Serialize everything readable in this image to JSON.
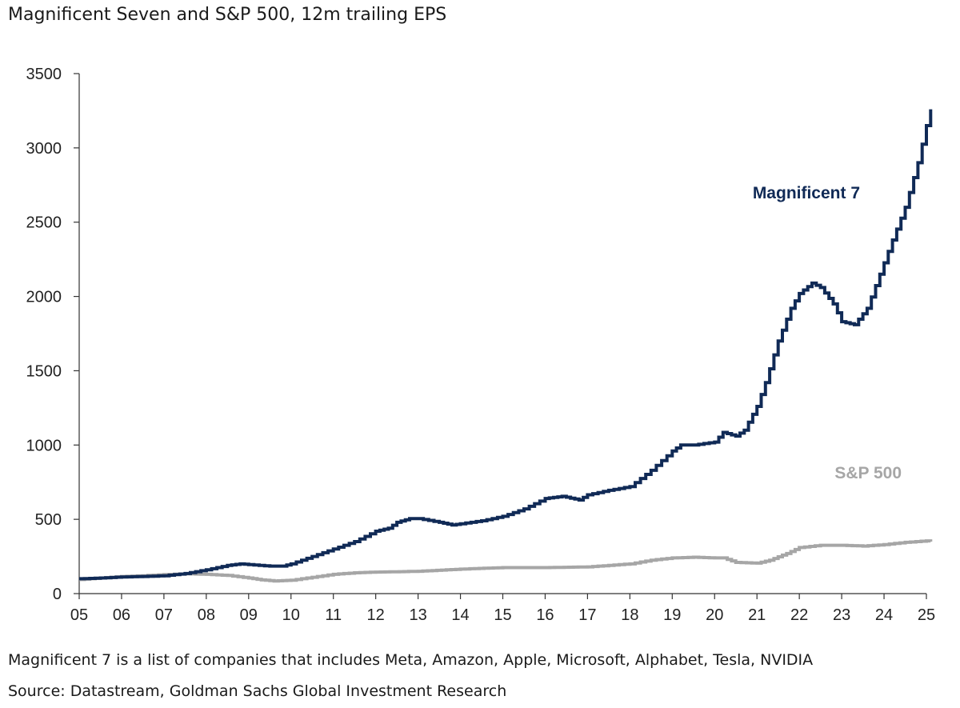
{
  "title": "Magnificent Seven and S&P 500, 12m trailing EPS",
  "footnote": "Magnificent 7 is a list of companies that includes Meta, Amazon, Apple, Microsoft, Alphabet, Tesla, NVIDIA",
  "source": "Source: Datastream, Goldman Sachs Global Investment Research",
  "chart_data": {
    "type": "line",
    "title": "Magnificent Seven and S&P 500, 12m trailing EPS",
    "xlabel": "",
    "ylabel": "",
    "xlim": [
      2005,
      2025
    ],
    "ylim": [
      0,
      3500
    ],
    "x_ticks": [
      "05",
      "06",
      "07",
      "08",
      "09",
      "10",
      "11",
      "12",
      "13",
      "14",
      "15",
      "16",
      "17",
      "18",
      "19",
      "20",
      "21",
      "22",
      "23",
      "24",
      "25"
    ],
    "y_ticks": [
      0,
      500,
      1000,
      1500,
      2000,
      2500,
      3000,
      3500
    ],
    "grid": false,
    "legend": "inline labels",
    "series": [
      {
        "name": "Magnificent 7",
        "color": "#102a56",
        "points": [
          [
            2005.0,
            100
          ],
          [
            2005.5,
            105
          ],
          [
            2006.0,
            112
          ],
          [
            2006.5,
            115
          ],
          [
            2007.0,
            120
          ],
          [
            2007.5,
            135
          ],
          [
            2008.0,
            160
          ],
          [
            2008.5,
            190
          ],
          [
            2008.8,
            200
          ],
          [
            2009.0,
            195
          ],
          [
            2009.5,
            185
          ],
          [
            2009.8,
            185
          ],
          [
            2010.0,
            200
          ],
          [
            2010.5,
            250
          ],
          [
            2011.0,
            300
          ],
          [
            2011.5,
            350
          ],
          [
            2012.0,
            420
          ],
          [
            2012.3,
            440
          ],
          [
            2012.5,
            480
          ],
          [
            2012.8,
            505
          ],
          [
            2013.0,
            505
          ],
          [
            2013.5,
            480
          ],
          [
            2013.8,
            462
          ],
          [
            2014.0,
            470
          ],
          [
            2014.5,
            490
          ],
          [
            2015.0,
            520
          ],
          [
            2015.5,
            570
          ],
          [
            2016.0,
            640
          ],
          [
            2016.4,
            655
          ],
          [
            2016.8,
            630
          ],
          [
            2017.0,
            665
          ],
          [
            2017.5,
            695
          ],
          [
            2018.0,
            720
          ],
          [
            2018.5,
            830
          ],
          [
            2019.0,
            960
          ],
          [
            2019.2,
            1000
          ],
          [
            2019.5,
            1000
          ],
          [
            2020.0,
            1020
          ],
          [
            2020.2,
            1085
          ],
          [
            2020.5,
            1060
          ],
          [
            2020.7,
            1100
          ],
          [
            2021.0,
            1260
          ],
          [
            2021.2,
            1420
          ],
          [
            2021.5,
            1700
          ],
          [
            2021.8,
            1920
          ],
          [
            2022.0,
            2020
          ],
          [
            2022.3,
            2090
          ],
          [
            2022.5,
            2060
          ],
          [
            2022.8,
            1950
          ],
          [
            2023.0,
            1830
          ],
          [
            2023.3,
            1810
          ],
          [
            2023.6,
            1920
          ],
          [
            2023.9,
            2150
          ],
          [
            2024.2,
            2380
          ],
          [
            2024.5,
            2600
          ],
          [
            2024.8,
            2900
          ],
          [
            2025.0,
            3150
          ],
          [
            2025.1,
            3260
          ]
        ]
      },
      {
        "name": "S&P 500",
        "color": "#a6a6a6",
        "points": [
          [
            2005.0,
            95
          ],
          [
            2005.5,
            105
          ],
          [
            2006.0,
            115
          ],
          [
            2006.5,
            120
          ],
          [
            2007.0,
            128
          ],
          [
            2007.5,
            133
          ],
          [
            2008.0,
            130
          ],
          [
            2008.5,
            122
          ],
          [
            2009.0,
            105
          ],
          [
            2009.3,
            92
          ],
          [
            2009.6,
            85
          ],
          [
            2010.0,
            90
          ],
          [
            2010.5,
            110
          ],
          [
            2011.0,
            130
          ],
          [
            2011.5,
            140
          ],
          [
            2012.0,
            145
          ],
          [
            2013.0,
            150
          ],
          [
            2014.0,
            165
          ],
          [
            2015.0,
            175
          ],
          [
            2016.0,
            175
          ],
          [
            2017.0,
            180
          ],
          [
            2017.5,
            190
          ],
          [
            2018.0,
            200
          ],
          [
            2018.5,
            225
          ],
          [
            2019.0,
            240
          ],
          [
            2019.5,
            245
          ],
          [
            2020.0,
            240
          ],
          [
            2020.2,
            240
          ],
          [
            2020.5,
            210
          ],
          [
            2021.0,
            205
          ],
          [
            2021.3,
            225
          ],
          [
            2021.7,
            270
          ],
          [
            2022.0,
            310
          ],
          [
            2022.5,
            325
          ],
          [
            2023.0,
            325
          ],
          [
            2023.5,
            320
          ],
          [
            2024.0,
            330
          ],
          [
            2024.5,
            345
          ],
          [
            2025.0,
            355
          ],
          [
            2025.1,
            350
          ]
        ]
      }
    ],
    "annotations": [
      {
        "text": "Magnificent 7",
        "color": "#102a56"
      },
      {
        "text": "S&P 500",
        "color": "#a6a6a6"
      }
    ]
  }
}
